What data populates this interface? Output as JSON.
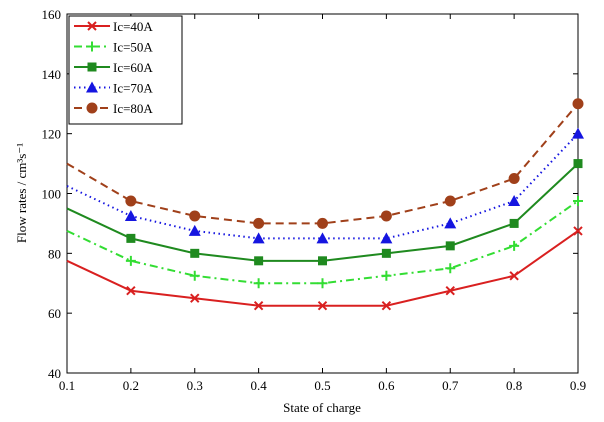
{
  "chart_data": {
    "type": "line",
    "xlabel": "State of charge",
    "ylabel": "Flow rates / cm³s⁻¹",
    "xlim": [
      0.1,
      0.9
    ],
    "ylim": [
      40,
      160
    ],
    "xticks": [
      0.1,
      0.2,
      0.3,
      0.4,
      0.5,
      0.6,
      0.7,
      0.8,
      0.9
    ],
    "xtick_labels": [
      "0.1",
      "0.2",
      "0.3",
      "0.4",
      "0.5",
      "0.6",
      "0.7",
      "0.8",
      "0.9"
    ],
    "yticks": [
      40,
      60,
      80,
      100,
      120,
      140,
      160
    ],
    "ytick_labels": [
      "40",
      "60",
      "80",
      "100",
      "120",
      "140",
      "160"
    ],
    "x": [
      0.1,
      0.2,
      0.3,
      0.4,
      0.5,
      0.6,
      0.7,
      0.8,
      0.9
    ],
    "grid": false,
    "legend_position": "top-left",
    "series": [
      {
        "name": "Ic=40A",
        "color": "#d92020",
        "line": "solid",
        "marker": "x",
        "values": [
          77.5,
          67.5,
          65,
          62.5,
          62.5,
          62.5,
          67.5,
          72.5,
          87.5
        ]
      },
      {
        "name": "Ic=50A",
        "color": "#33dd33",
        "line": "dashdot",
        "marker": "plus",
        "values": [
          87.5,
          77.5,
          72.5,
          70,
          70,
          72.5,
          75,
          82.5,
          97.5
        ]
      },
      {
        "name": "Ic=60A",
        "color": "#1f8a1f",
        "line": "solid",
        "marker": "square",
        "values": [
          95,
          85,
          80,
          77.5,
          77.5,
          80,
          82.5,
          90,
          110
        ]
      },
      {
        "name": "Ic=70A",
        "color": "#1515e0",
        "line": "dotted",
        "marker": "triangle",
        "values": [
          102.5,
          92.5,
          87.5,
          85,
          85,
          85,
          90,
          97.5,
          120
        ]
      },
      {
        "name": "Ic=80A",
        "color": "#a0401a",
        "line": "dashed",
        "marker": "circle",
        "values": [
          110,
          97.5,
          92.5,
          90,
          90,
          92.5,
          97.5,
          105,
          130
        ]
      }
    ]
  }
}
